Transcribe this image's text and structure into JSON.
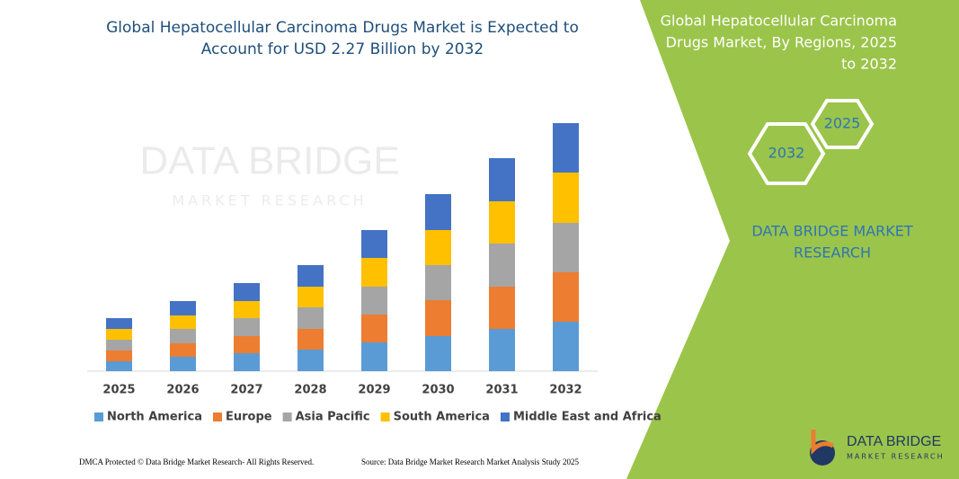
{
  "chart_data": {
    "type": "stacked-bar",
    "title": [
      "Global Hepatocellular Carcinoma Drugs Market is Expected to",
      "Account for USD 2.27 Billion by 2032"
    ],
    "categories": [
      "2025",
      "2026",
      "2027",
      "2028",
      "2029",
      "2030",
      "2031",
      "2032"
    ],
    "series": [
      {
        "name": "North America",
        "color": "#5b9bd5",
        "values": [
          11,
          16,
          20,
          24,
          32,
          39,
          47,
          55
        ]
      },
      {
        "name": "Europe",
        "color": "#ed7d31",
        "values": [
          12,
          15,
          19,
          23,
          31,
          40,
          47,
          55
        ]
      },
      {
        "name": "Asia Pacific",
        "color": "#a5a5a5",
        "values": [
          12,
          16,
          20,
          24,
          31,
          39,
          48,
          55
        ]
      },
      {
        "name": "South America",
        "color": "#ffc000",
        "values": [
          12,
          15,
          19,
          23,
          32,
          39,
          47,
          56
        ]
      },
      {
        "name": "Middle East and Africa",
        "color": "#4472c4",
        "values": [
          12,
          16,
          20,
          24,
          31,
          40,
          48,
          55
        ]
      }
    ],
    "ylim": [
      0,
      280
    ],
    "legend": "bottom"
  },
  "watermark": [
    "DATA BRIDGE",
    "MARKET RESEARCH"
  ],
  "side_panel": {
    "title": [
      "Global Hepatocellular Carcinoma",
      "Drugs Market, By Regions, 2025",
      "to 2032"
    ],
    "hexagons": [
      "2025",
      "2032"
    ],
    "brand": [
      "DATA BRIDGE MARKET",
      "RESEARCH"
    ]
  },
  "logo": [
    "DATA BRIDGE",
    "MARKET RESEARCH"
  ],
  "footer": {
    "left": "DMCA Protected © Data Bridge Market Research- All Rights Reserved.",
    "right": "Source: Data Bridge Market Research Market Analysis Study 2025"
  }
}
